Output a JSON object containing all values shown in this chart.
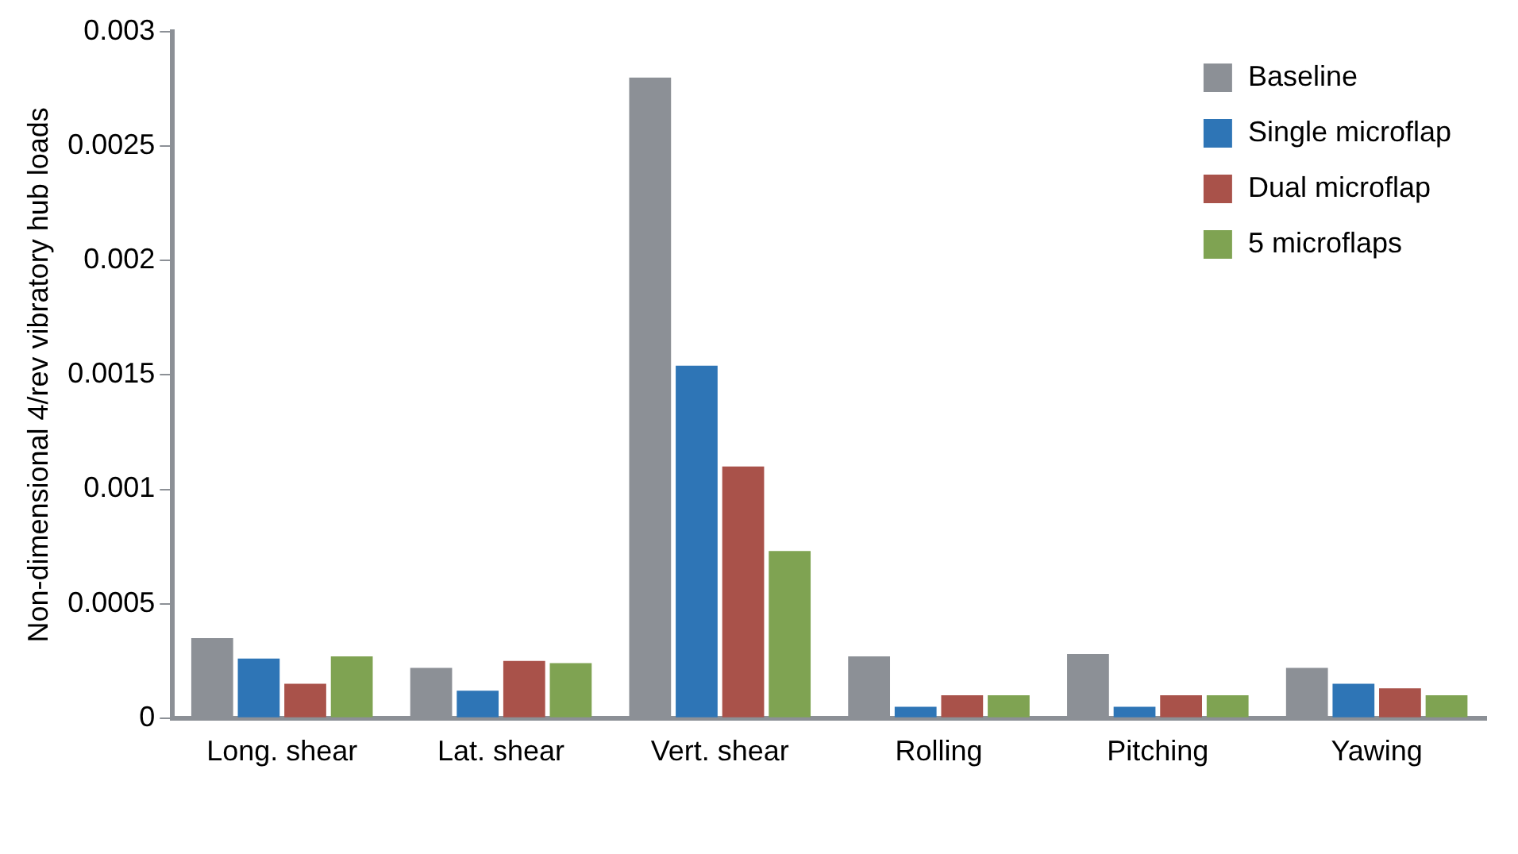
{
  "chart_data": {
    "type": "bar",
    "ylabel": "Non-dimensional 4/rev vibratory hub loads",
    "categories": [
      "Long. shear",
      "Lat. shear",
      "Vert. shear",
      "Rolling",
      "Pitching",
      "Yawing"
    ],
    "series": [
      {
        "name": "Baseline",
        "color": "#8c9096",
        "values": [
          0.00035,
          0.00022,
          0.0028,
          0.00027,
          0.00028,
          0.00022
        ]
      },
      {
        "name": "Single microflap",
        "color": "#2e75b6",
        "values": [
          0.00026,
          0.00012,
          0.00154,
          5e-05,
          5e-05,
          0.00015
        ]
      },
      {
        "name": "Dual microflap",
        "color": "#a9524a",
        "values": [
          0.00015,
          0.00025,
          0.0011,
          0.0001,
          0.0001,
          0.00013
        ]
      },
      {
        "name": "5 microflaps",
        "color": "#7fa352",
        "values": [
          0.00027,
          0.00024,
          0.00073,
          0.0001,
          0.0001,
          0.0001
        ]
      }
    ],
    "ylim": [
      0,
      0.003
    ],
    "yticks": [
      0,
      0.0005,
      0.001,
      0.0015,
      0.002,
      0.0025,
      0.003
    ],
    "grid": false,
    "legend": "top right"
  }
}
